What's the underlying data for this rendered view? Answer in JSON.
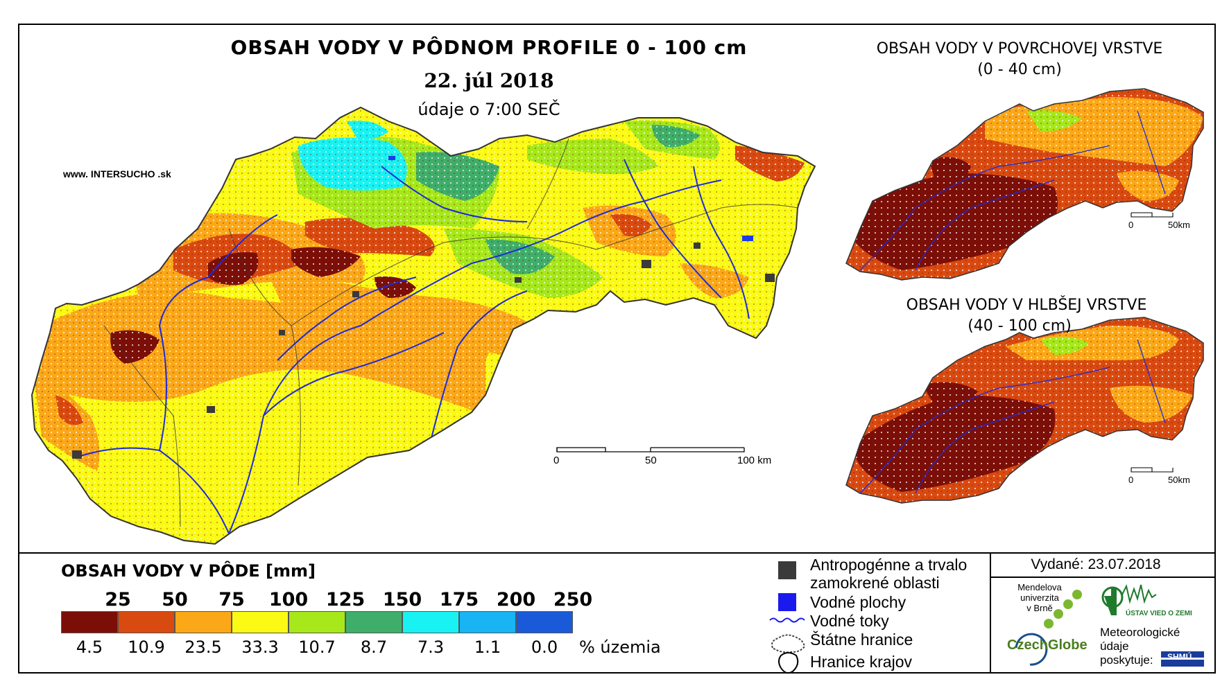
{
  "main_map": {
    "title": "OBSAH VODY V PÔDNOM PROFILE 0 - 100 cm",
    "date": "22. júl 2018",
    "time_note": "údaje o 7:00 SEČ",
    "website": "www. INTERSUCHO .sk",
    "scale_labels": [
      "0",
      "50",
      "100 km"
    ]
  },
  "inset_top": {
    "title": "OBSAH VODY V POVRCHOVEJ VRSTVE",
    "subtitle": "(0 - 40 cm)",
    "scale_labels": [
      "0",
      "50km"
    ]
  },
  "inset_bottom": {
    "title": "OBSAH VODY V HLBŠEJ VRSTVE",
    "subtitle": "(40 - 100 cm)",
    "scale_labels": [
      "0",
      "50km"
    ]
  },
  "legend": {
    "title": "OBSAH VODY V PÔDE [mm]",
    "breaks": [
      "25",
      "50",
      "75",
      "100",
      "125",
      "150",
      "175",
      "200",
      "250"
    ],
    "colors": [
      "#7b0f08",
      "#d94a10",
      "#fba818",
      "#fafa14",
      "#a6e81a",
      "#3fae6a",
      "#19f2f2",
      "#18b4f4",
      "#1a5ad8"
    ],
    "percentages": [
      "4.5",
      "10.9",
      "23.5",
      "33.3",
      "10.7",
      "8.7",
      "7.3",
      "1.1",
      "0.0"
    ],
    "percent_label": "% územia"
  },
  "symbols": {
    "urban": "Antropogénne a trvalo zamokrené oblasti",
    "urban_line1": "Antropogénne a trvalo",
    "urban_line2": "zamokrené oblasti",
    "water_bodies": "Vodné plochy",
    "rivers": "Vodné toky",
    "state_border": "Štátne hranice",
    "region_border": "Hranice krajov"
  },
  "credits": {
    "issued": "Vydané: 23.07.2018",
    "mendel": [
      "Mendelova",
      "univerzita",
      "v Brně"
    ],
    "czechglobe": "CzechGlobe",
    "ustav": "ÚSTAV VIED O ZEMI",
    "meteo": [
      "Meteorologické",
      "údaje",
      "poskytuje:"
    ],
    "shmu": "SHMÚ"
  }
}
